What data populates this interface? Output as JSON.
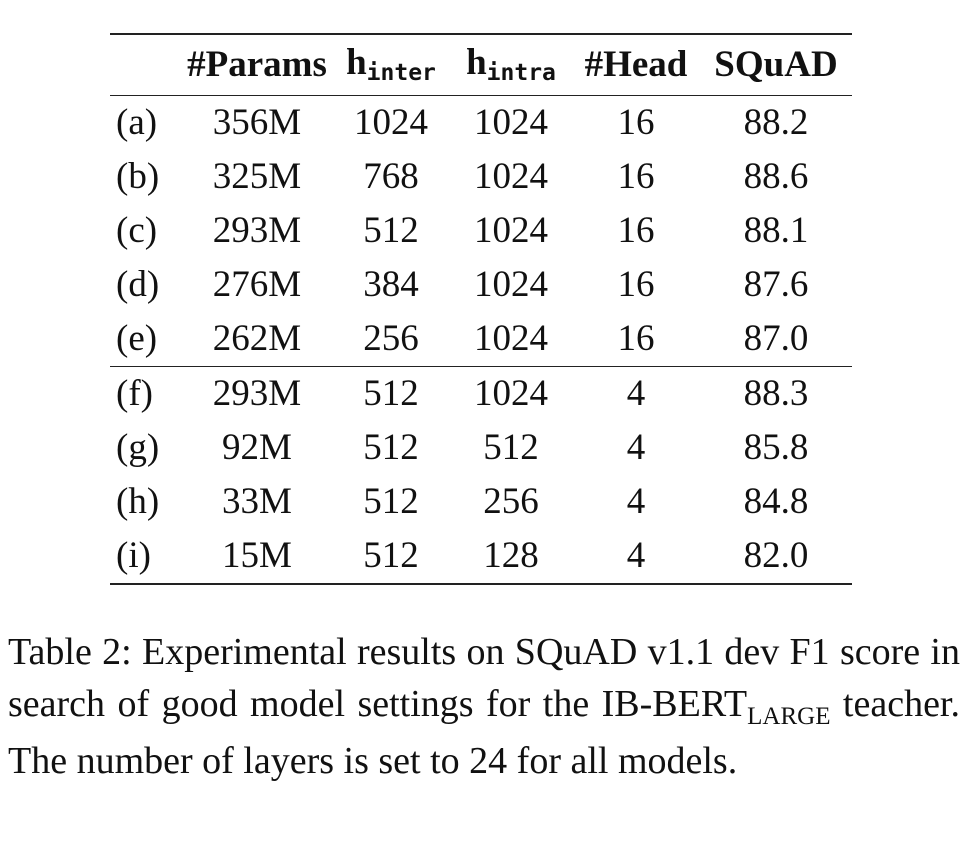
{
  "table": {
    "headers": {
      "label": "",
      "params": "#Params",
      "h_inter_base": "h",
      "h_inter_sub": "inter",
      "h_intra_base": "h",
      "h_intra_sub": "intra",
      "head": "#Head",
      "squad": "SQuAD"
    },
    "rows": [
      {
        "label": "(a)",
        "params": "356M",
        "h_inter": "1024",
        "h_intra": "1024",
        "head": "16",
        "squad": "88.2"
      },
      {
        "label": "(b)",
        "params": "325M",
        "h_inter": "768",
        "h_intra": "1024",
        "head": "16",
        "squad": "88.6"
      },
      {
        "label": "(c)",
        "params": "293M",
        "h_inter": "512",
        "h_intra": "1024",
        "head": "16",
        "squad": "88.1"
      },
      {
        "label": "(d)",
        "params": "276M",
        "h_inter": "384",
        "h_intra": "1024",
        "head": "16",
        "squad": "87.6"
      },
      {
        "label": "(e)",
        "params": "262M",
        "h_inter": "256",
        "h_intra": "1024",
        "head": "16",
        "squad": "87.0"
      },
      {
        "label": "(f)",
        "params": "293M",
        "h_inter": "512",
        "h_intra": "1024",
        "head": "4",
        "squad": "88.3"
      },
      {
        "label": "(g)",
        "params": "92M",
        "h_inter": "512",
        "h_intra": "512",
        "head": "4",
        "squad": "85.8"
      },
      {
        "label": "(h)",
        "params": "33M",
        "h_inter": "512",
        "h_intra": "256",
        "head": "4",
        "squad": "84.8"
      },
      {
        "label": "(i)",
        "params": "15M",
        "h_inter": "512",
        "h_intra": "128",
        "head": "4",
        "squad": "82.0"
      }
    ]
  },
  "caption": {
    "part1": "Table 2:  Experimental results on SQuAD v1.1 dev F1 score in search of good model settings for the IB-BERT",
    "subscript": "LARGE",
    "part2": " teacher.  The number of layers is set to 24 for all models."
  }
}
